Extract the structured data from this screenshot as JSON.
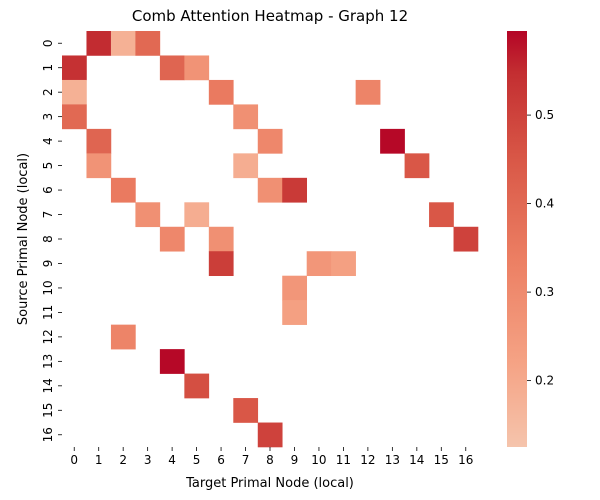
{
  "chart_data": {
    "type": "heatmap",
    "title": "Comb Attention Heatmap - Graph 12",
    "xlabel": "Target Primal Node (local)",
    "ylabel": "Source Primal Node (local)",
    "x_categories": [
      "0",
      "1",
      "2",
      "3",
      "4",
      "5",
      "6",
      "7",
      "8",
      "9",
      "10",
      "11",
      "12",
      "13",
      "14",
      "15",
      "16"
    ],
    "y_categories": [
      "0",
      "1",
      "2",
      "3",
      "4",
      "5",
      "6",
      "7",
      "8",
      "9",
      "10",
      "11",
      "12",
      "13",
      "14",
      "15",
      "16"
    ],
    "cells": [
      {
        "row": 0,
        "col": 1,
        "value": 0.55
      },
      {
        "row": 0,
        "col": 2,
        "value": 0.18
      },
      {
        "row": 0,
        "col": 3,
        "value": 0.4
      },
      {
        "row": 1,
        "col": 0,
        "value": 0.54
      },
      {
        "row": 1,
        "col": 4,
        "value": 0.41
      },
      {
        "row": 1,
        "col": 5,
        "value": 0.27
      },
      {
        "row": 2,
        "col": 0,
        "value": 0.18
      },
      {
        "row": 2,
        "col": 6,
        "value": 0.35
      },
      {
        "row": 2,
        "col": 12,
        "value": 0.32
      },
      {
        "row": 3,
        "col": 0,
        "value": 0.4
      },
      {
        "row": 3,
        "col": 7,
        "value": 0.28
      },
      {
        "row": 4,
        "col": 1,
        "value": 0.41
      },
      {
        "row": 4,
        "col": 8,
        "value": 0.31
      },
      {
        "row": 4,
        "col": 13,
        "value": 0.59
      },
      {
        "row": 5,
        "col": 1,
        "value": 0.27
      },
      {
        "row": 5,
        "col": 7,
        "value": 0.19
      },
      {
        "row": 5,
        "col": 14,
        "value": 0.45
      },
      {
        "row": 6,
        "col": 2,
        "value": 0.35
      },
      {
        "row": 6,
        "col": 8,
        "value": 0.28
      },
      {
        "row": 6,
        "col": 9,
        "value": 0.52
      },
      {
        "row": 7,
        "col": 3,
        "value": 0.28
      },
      {
        "row": 7,
        "col": 5,
        "value": 0.19
      },
      {
        "row": 7,
        "col": 15,
        "value": 0.45
      },
      {
        "row": 8,
        "col": 4,
        "value": 0.31
      },
      {
        "row": 8,
        "col": 6,
        "value": 0.28
      },
      {
        "row": 8,
        "col": 16,
        "value": 0.5
      },
      {
        "row": 9,
        "col": 6,
        "value": 0.51
      },
      {
        "row": 9,
        "col": 10,
        "value": 0.26
      },
      {
        "row": 9,
        "col": 11,
        "value": 0.23
      },
      {
        "row": 10,
        "col": 9,
        "value": 0.26
      },
      {
        "row": 11,
        "col": 9,
        "value": 0.23
      },
      {
        "row": 12,
        "col": 2,
        "value": 0.32
      },
      {
        "row": 13,
        "col": 4,
        "value": 0.59
      },
      {
        "row": 14,
        "col": 5,
        "value": 0.47
      },
      {
        "row": 15,
        "col": 7,
        "value": 0.45
      },
      {
        "row": 16,
        "col": 8,
        "value": 0.5
      }
    ],
    "colorbar": {
      "vmin": 0.125,
      "vmax": 0.595,
      "ticks": [
        0.2,
        0.3,
        0.4,
        0.5
      ],
      "tick_labels": [
        "0.2",
        "0.3",
        "0.4",
        "0.5"
      ],
      "colormap": "coolwarm (upper half)",
      "low_color": "#f5c4ac",
      "high_color": "#b40426"
    },
    "grid": false
  }
}
